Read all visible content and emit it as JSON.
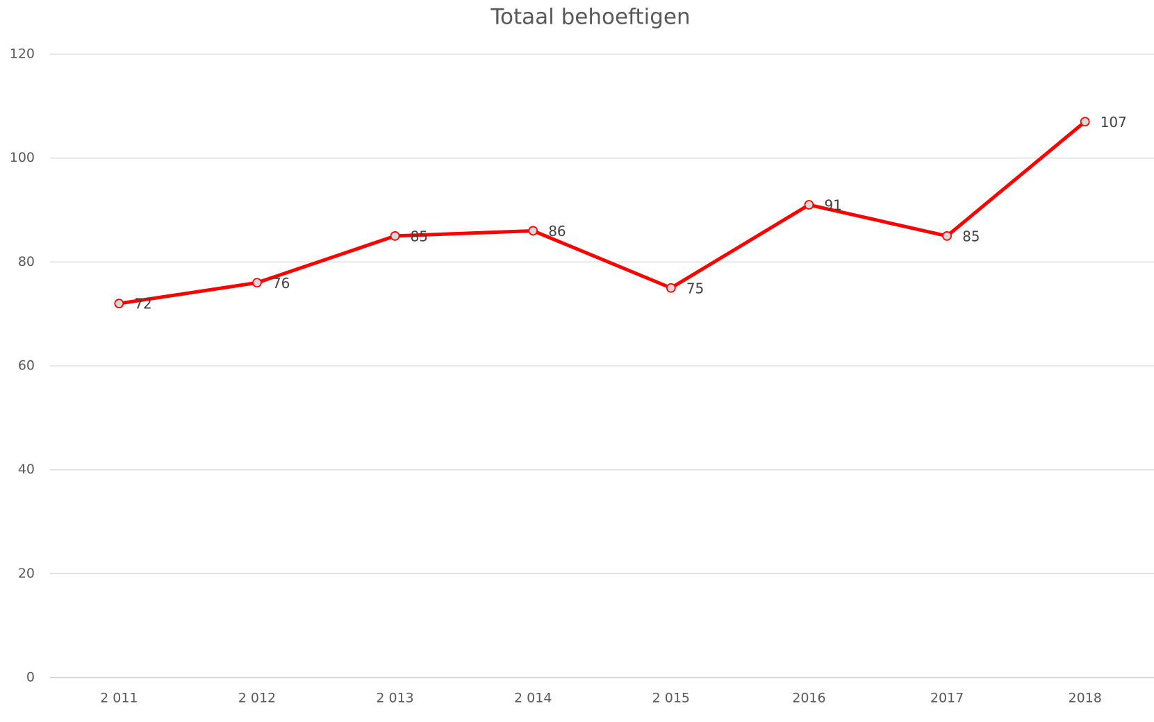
{
  "chart_data": {
    "type": "line",
    "title": "Totaal behoeftigen",
    "categories": [
      "2 011",
      "2 012",
      "2 013",
      "2 014",
      "2 015",
      "2016",
      "2017",
      "2018"
    ],
    "values": [
      72,
      76,
      85,
      86,
      75,
      91,
      85,
      107
    ],
    "color": "#ff0000",
    "marker_color": "#d9d9d9",
    "ylim": [
      0,
      120
    ],
    "yticks": [
      0,
      20,
      40,
      60,
      80,
      100,
      120
    ],
    "grid": true
  }
}
